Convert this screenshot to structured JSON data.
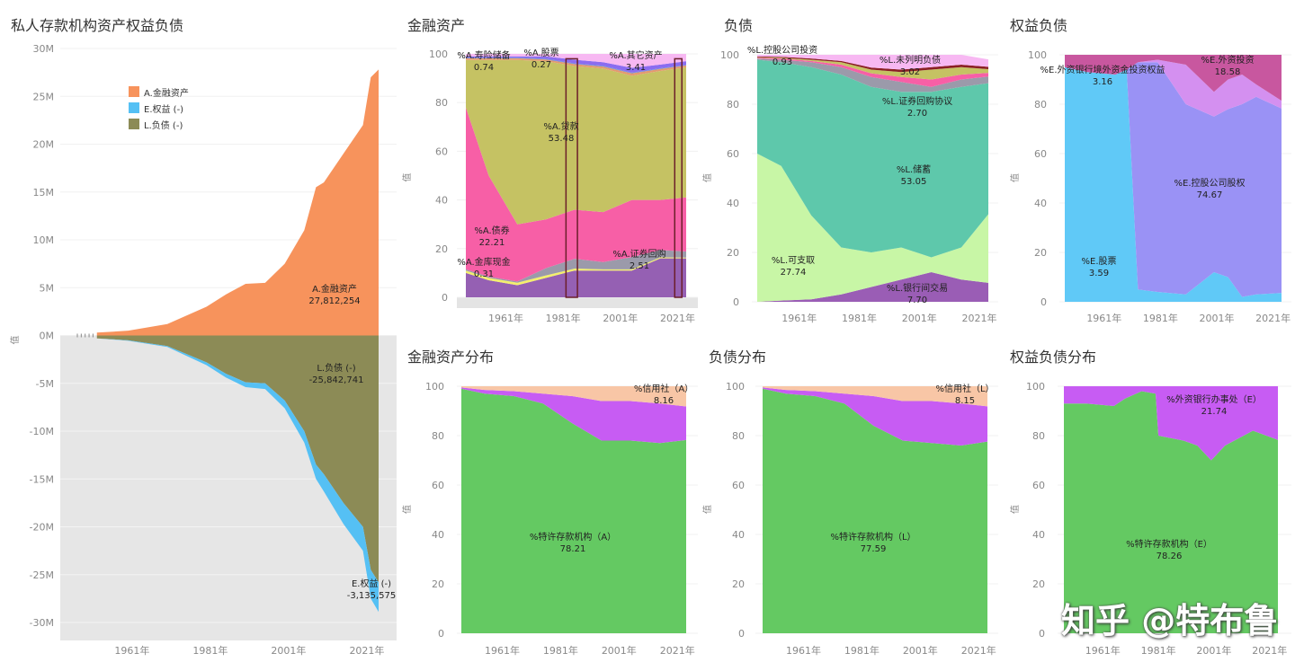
{
  "watermark": "知乎 @特布鲁",
  "chart_data": [
    {
      "type": "area",
      "title": "私人存款机构资产权益负债",
      "ylabel": "值",
      "x_ticks": [
        1961,
        1981,
        2001,
        2021
      ],
      "x_tick_labels": [
        "1961年",
        "1981年",
        "2001年",
        "2021年"
      ],
      "y_ticks": [
        30,
        25,
        20,
        15,
        10,
        5,
        0,
        -5,
        -10,
        -15,
        -20,
        -25,
        -30
      ],
      "y_tick_labels": [
        "30M",
        "25M",
        "20M",
        "15M",
        "10M",
        "5M",
        "0M",
        "-5M",
        "-10M",
        "-15M",
        "-20M",
        "-25M",
        "-30M"
      ],
      "ylim": [
        -30,
        30
      ],
      "unit": "M",
      "legend": [
        {
          "name": "A.金融资产",
          "color": "#f7935c"
        },
        {
          "name": "E.权益 (-)",
          "color": "#55c0f4"
        },
        {
          "name": "L.负债 (-)",
          "color": "#8c8b56"
        }
      ],
      "x": [
        1952,
        1960,
        1970,
        1980,
        1985,
        1990,
        1995,
        2000,
        2005,
        2008,
        2010,
        2015,
        2020,
        2022,
        2024
      ],
      "series": [
        {
          "name": "A.金融资产",
          "color": "#f7935c",
          "values": [
            0.3,
            0.5,
            1.2,
            3.0,
            4.3,
            5.4,
            5.5,
            7.5,
            11.0,
            15.5,
            16.0,
            19.0,
            22.0,
            27.0,
            27.8
          ]
        },
        {
          "name": "L.负债 (-)",
          "color": "#8c8b56",
          "values": [
            -0.3,
            -0.5,
            -1.1,
            -2.8,
            -4.0,
            -4.9,
            -5.0,
            -6.8,
            -10.0,
            -13.5,
            -14.5,
            -17.5,
            -20.0,
            -24.5,
            -25.8
          ]
        },
        {
          "name": "E.权益 (-)",
          "color": "#55c0f4",
          "values": [
            0,
            -0.05,
            -0.1,
            -0.3,
            -0.4,
            -0.5,
            -0.6,
            -0.8,
            -1.2,
            -1.5,
            -1.8,
            -2.2,
            -2.5,
            -3.0,
            -3.1
          ]
        }
      ],
      "labels": [
        {
          "name": "A.金融资产",
          "value": "27,812,254"
        },
        {
          "name": "L.负债 (-)",
          "value": "-25,842,741"
        },
        {
          "name": "E.权益 (-)",
          "value": "-3,135,575"
        }
      ]
    },
    {
      "type": "area",
      "title": "金融资产",
      "ylabel": "值",
      "x_ticks": [
        1961,
        1981,
        2001,
        2021
      ],
      "x_tick_labels": [
        "1961年",
        "1981年",
        "2001年",
        "2021年"
      ],
      "y_ticks": [
        0,
        20,
        40,
        60,
        80,
        100
      ],
      "ylim": [
        0,
        100
      ],
      "x": [
        1947,
        1955,
        1965,
        1975,
        1985,
        1995,
        2005,
        2015,
        2024
      ],
      "highlight_spans": [
        [
          1982,
          1986
        ],
        [
          2020,
          2022.5
        ]
      ],
      "series": [
        {
          "name": "",
          "color": "#9560b3",
          "values": [
            10,
            7,
            5,
            8,
            11,
            11,
            11,
            16,
            16
          ]
        },
        {
          "name": "%A.金库现金",
          "color": "#f3ef6c",
          "values": [
            1,
            1,
            1,
            1,
            0.8,
            0.5,
            0.5,
            0.4,
            0.31
          ]
        },
        {
          "name": "%A.证券回购",
          "color": "#9b9aaa",
          "values": [
            0.5,
            0.5,
            0.5,
            3,
            4,
            3,
            5,
            3,
            2.51
          ]
        },
        {
          "name": "%A.债券",
          "color": "#f75fa6",
          "values": [
            66.5,
            41.5,
            23.5,
            20,
            20.2,
            20.5,
            23.5,
            20.6,
            22.21
          ]
        },
        {
          "name": "%A.贷款",
          "color": "#c5c263",
          "values": [
            19.5,
            47.5,
            67.5,
            65,
            59,
            59,
            51,
            53,
            53.48
          ]
        },
        {
          "name": "%A.寿险储备",
          "color": "#e39a70",
          "values": [
            0.7,
            0.7,
            0.7,
            0.7,
            0.8,
            0.8,
            1,
            0.8,
            0.74
          ]
        },
        {
          "name": "%A.股票",
          "color": "#6a8dd6",
          "values": [
            0.3,
            0.3,
            0.3,
            0.3,
            0.3,
            0.3,
            0.3,
            0.3,
            0.27
          ]
        },
        {
          "name": "",
          "color": "#8b6cf0",
          "values": [
            0.5,
            0.5,
            0.5,
            1,
            1.5,
            1.5,
            2,
            1.5,
            1.5
          ]
        },
        {
          "name": "%A.其它资产",
          "color": "#f7b8f2",
          "values": [
            1,
            1,
            1,
            1,
            2.4,
            3.4,
            5.7,
            4.4,
            3.41
          ]
        }
      ],
      "labels": [
        {
          "name": "%A.寿险储备",
          "value": "0.74"
        },
        {
          "name": "%A.股票",
          "value": "0.27"
        },
        {
          "name": "%A.其它资产",
          "value": "3.41"
        },
        {
          "name": "%A.贷款",
          "value": "53.48"
        },
        {
          "name": "%A.债券",
          "value": "22.21"
        },
        {
          "name": "%A.金库现金",
          "value": "0.31"
        },
        {
          "name": "%A.证券回购",
          "value": "2.51"
        }
      ]
    },
    {
      "type": "area",
      "title": "负债",
      "ylabel": "值",
      "x_ticks": [
        1961,
        1981,
        2001,
        2021
      ],
      "x_tick_labels": [
        "1961年",
        "1981年",
        "2001年",
        "2021年"
      ],
      "y_ticks": [
        0,
        20,
        40,
        60,
        80,
        100
      ],
      "ylim": [
        0,
        100
      ],
      "x": [
        1947,
        1955,
        1965,
        1975,
        1985,
        1995,
        2005,
        2015,
        2024
      ],
      "series": [
        {
          "name": "%L.银行间交易",
          "color": "#9a5db5",
          "values": [
            0,
            0.5,
            1,
            3,
            6,
            9,
            12,
            9,
            7.7
          ]
        },
        {
          "name": "%L.可支取",
          "color": "#c8f6a6",
          "values": [
            60,
            54.5,
            34,
            19,
            14,
            13,
            6,
            13,
            27.74
          ]
        },
        {
          "name": "%L.储蓄",
          "color": "#5ec8ab",
          "values": [
            38,
            42,
            60,
            70,
            67,
            63,
            67,
            65,
            53.05
          ]
        },
        {
          "name": "%L.证券回购协议",
          "color": "#9b9aaa",
          "values": [
            0.5,
            1,
            2,
            3,
            4,
            4,
            2,
            3,
            2.7
          ]
        },
        {
          "name": "",
          "color": "#f75fa6",
          "values": [
            0.3,
            0.5,
            0.5,
            1,
            1.5,
            2,
            3,
            2,
            1.5
          ]
        },
        {
          "name": "",
          "color": "#c5c263",
          "values": [
            0.2,
            0.3,
            0.5,
            1,
            1.5,
            2,
            4,
            3,
            1.5
          ]
        },
        {
          "name": "%L.控股公司投资",
          "color": "#8b1f24",
          "values": [
            0.3,
            0.4,
            0.5,
            0.5,
            0.8,
            1,
            1,
            1,
            0.93
          ]
        },
        {
          "name": "%L.未列明负债",
          "color": "#f7b8f2",
          "values": [
            0.7,
            0.8,
            1.5,
            2.5,
            5.2,
            6,
            5,
            4,
            3.02
          ]
        }
      ],
      "labels": [
        {
          "name": "%L.控股公司投资",
          "value": "0.93"
        },
        {
          "name": "%L.未列明负债",
          "value": "3.02"
        },
        {
          "name": "%L.证券回购协议",
          "value": "2.70"
        },
        {
          "name": "%L.储蓄",
          "value": "53.05"
        },
        {
          "name": "%L.可支取",
          "value": "27.74"
        },
        {
          "name": "%L.银行间交易",
          "value": "7.70"
        }
      ]
    },
    {
      "type": "area",
      "title": "权益负债",
      "ylabel": "值",
      "x_ticks": [
        1961,
        1981,
        2001,
        2021
      ],
      "x_tick_labels": [
        "1961年",
        "1981年",
        "2001年",
        "2021年"
      ],
      "y_ticks": [
        0,
        20,
        40,
        60,
        80,
        100
      ],
      "ylim": [
        0,
        100
      ],
      "x": [
        1947,
        1955,
        1965,
        1969,
        1973,
        1980,
        1990,
        2000,
        2005,
        2010,
        2015,
        2024
      ],
      "series": [
        {
          "name": "%E.股票",
          "color": "#60c9f7",
          "values": [
            95,
            93,
            92,
            94,
            5,
            4,
            3,
            12,
            10,
            2,
            3,
            3.59
          ]
        },
        {
          "name": "%E.控股公司股权",
          "color": "#9a92f5",
          "values": [
            0,
            0,
            0,
            0,
            92,
            93,
            77,
            63,
            68,
            78,
            80,
            74.67
          ]
        },
        {
          "name": "%E.外资银行境外资金投资权益",
          "color": "#d490f0",
          "values": [
            0,
            0,
            0,
            0,
            0,
            1,
            16,
            10,
            12,
            12,
            5,
            3.16
          ]
        },
        {
          "name": "%E.外资投资",
          "color": "#c8579f",
          "values": [
            5,
            7,
            8,
            6,
            3,
            2,
            4,
            15,
            10,
            8,
            12,
            18.58
          ]
        }
      ],
      "labels": [
        {
          "name": "%E.外资银行境外资金投资权益",
          "value": "3.16"
        },
        {
          "name": "%E.外资投资",
          "value": "18.58"
        },
        {
          "name": "%E.控股公司股权",
          "value": "74.67"
        },
        {
          "name": "%E.股票",
          "value": "3.59"
        }
      ]
    },
    {
      "type": "area",
      "title": "金融资产分布",
      "ylabel": "值",
      "x_ticks": [
        1961,
        1981,
        2001,
        2021
      ],
      "x_tick_labels": [
        "1961年",
        "1981年",
        "2001年",
        "2021年"
      ],
      "y_ticks": [
        0,
        20,
        40,
        60,
        80,
        100
      ],
      "ylim": [
        0,
        100
      ],
      "x": [
        1947,
        1955,
        1965,
        1975,
        1985,
        1995,
        2005,
        2015,
        2024
      ],
      "series": [
        {
          "name": "%特许存款机构（A）",
          "color": "#64c962",
          "values": [
            99,
            97,
            96,
            93,
            85,
            78,
            78,
            77,
            78.21
          ]
        },
        {
          "name": "",
          "color": "#c75cf3",
          "values": [
            0.5,
            1.5,
            2,
            4,
            11,
            16,
            16,
            16,
            13.63
          ]
        },
        {
          "name": "%信用社（A）",
          "color": "#f8c6a6",
          "values": [
            0.5,
            1.5,
            2,
            3,
            4,
            6,
            6,
            7,
            8.16
          ]
        }
      ],
      "labels": [
        {
          "name": "%信用社（A）",
          "value": "8.16"
        },
        {
          "name": "%特许存款机构（A）",
          "value": "78.21"
        }
      ]
    },
    {
      "type": "area",
      "title": "负债分布",
      "ylabel": "值",
      "x_ticks": [
        1961,
        1981,
        2001,
        2021
      ],
      "x_tick_labels": [
        "1961年",
        "1981年",
        "2001年",
        "2021年"
      ],
      "y_ticks": [
        0,
        20,
        40,
        60,
        80,
        100
      ],
      "ylim": [
        0,
        100
      ],
      "x": [
        1947,
        1955,
        1965,
        1975,
        1985,
        1995,
        2005,
        2015,
        2024
      ],
      "series": [
        {
          "name": "%特许存款机构（L）",
          "color": "#64c962",
          "values": [
            99,
            97,
            96,
            93,
            84,
            78,
            77,
            76,
            77.59
          ]
        },
        {
          "name": "",
          "color": "#c75cf3",
          "values": [
            0.5,
            1.5,
            2,
            4,
            12,
            16,
            17,
            17,
            14.26
          ]
        },
        {
          "name": "%信用社（L）",
          "color": "#f8c6a6",
          "values": [
            0.5,
            1.5,
            2,
            3,
            4,
            6,
            6,
            7,
            8.15
          ]
        }
      ],
      "labels": [
        {
          "name": "%信用社（L）",
          "value": "8.15"
        },
        {
          "name": "%特许存款机构（L）",
          "value": "77.59"
        }
      ]
    },
    {
      "type": "area",
      "title": "权益负债分布",
      "ylabel": "值",
      "x_ticks": [
        1961,
        1981,
        2001,
        2021
      ],
      "x_tick_labels": [
        "1961年",
        "1981年",
        "2001年",
        "2021年"
      ],
      "y_ticks": [
        0,
        20,
        40,
        60,
        80,
        100
      ],
      "ylim": [
        0,
        100
      ],
      "x": [
        1947,
        1955,
        1965,
        1969,
        1975,
        1980,
        1981,
        1990,
        1995,
        2000,
        2005,
        2015,
        2024
      ],
      "series": [
        {
          "name": "%特许存款机构（E）",
          "color": "#64c962",
          "values": [
            93,
            93,
            92,
            95,
            98,
            97,
            80,
            78,
            76,
            70,
            76,
            82,
            78.26
          ]
        },
        {
          "name": "%外资银行办事处（E）",
          "color": "#c75cf3",
          "values": [
            7,
            7,
            8,
            5,
            2,
            3,
            20,
            22,
            24,
            30,
            24,
            18,
            21.74
          ]
        }
      ],
      "labels": [
        {
          "name": "%外资银行办事处（E）",
          "value": "21.74"
        },
        {
          "name": "%特许存款机构（E）",
          "value": "78.26"
        }
      ]
    }
  ]
}
